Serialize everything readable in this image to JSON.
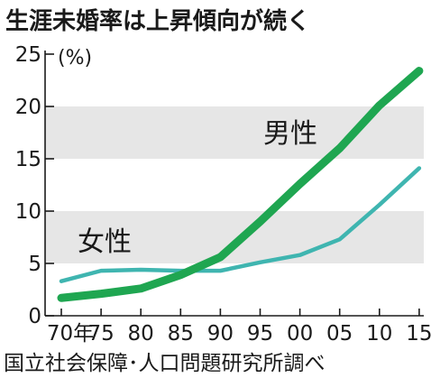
{
  "title": "生涯未婚率は上昇傾向が続く",
  "source": "国立社会保障･人口問題研究所調べ",
  "chart_data": {
    "type": "line",
    "x": [
      "70年",
      "75",
      "80",
      "85",
      "90",
      "95",
      "00",
      "05",
      "10",
      "15"
    ],
    "series": [
      {
        "name": "男性",
        "values": [
          1.7,
          2.1,
          2.6,
          3.9,
          5.6,
          9.0,
          12.6,
          16.0,
          20.1,
          23.4
        ],
        "color": "#1fa651"
      },
      {
        "name": "女性",
        "values": [
          3.3,
          4.3,
          4.4,
          4.3,
          4.3,
          5.1,
          5.8,
          7.3,
          10.6,
          14.1
        ],
        "color": "#3fb5b0"
      }
    ],
    "yunit": "(%)",
    "ylim": [
      0,
      25
    ],
    "yticks": [
      0,
      5,
      10,
      15,
      20,
      25
    ],
    "bands": [
      [
        5,
        10
      ],
      [
        15,
        20
      ]
    ],
    "band_color": "#e6e6e6"
  }
}
